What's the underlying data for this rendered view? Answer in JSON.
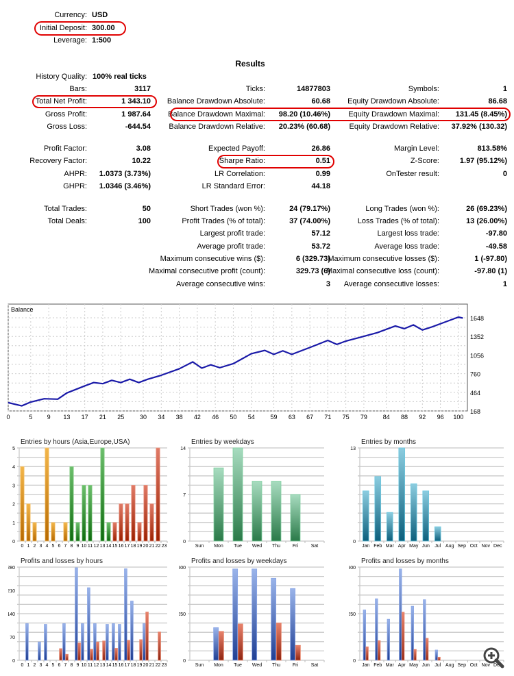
{
  "header": [
    {
      "label": "Currency:",
      "value": "USD"
    },
    {
      "label": "Initial Deposit:",
      "value": "300.00"
    },
    {
      "label": "Leverage:",
      "value": "1:500"
    }
  ],
  "results_title": "Results",
  "sections": [
    {
      "col1": [
        {
          "label": "History Quality:",
          "value": "100% real ticks"
        },
        {
          "label": "Bars:",
          "value": "3117"
        },
        {
          "label": "Total Net Profit:",
          "value": "1 343.10"
        },
        {
          "label": "Gross Profit:",
          "value": "1 987.64"
        },
        {
          "label": "Gross Loss:",
          "value": "-644.54"
        }
      ],
      "col2": [
        null,
        {
          "label": "Ticks:",
          "value": "14877803"
        },
        {
          "label": "Balance Drawdown Absolute:",
          "value": "60.68"
        },
        {
          "label": "Balance Drawdown Maximal:",
          "value": "98.20 (10.46%)"
        },
        {
          "label": "Balance Drawdown Relative:",
          "value": "20.23% (60.68)"
        }
      ],
      "col3": [
        null,
        {
          "label": "Symbols:",
          "value": "1"
        },
        {
          "label": "Equity Drawdown Absolute:",
          "value": "86.68"
        },
        {
          "label": "Equity Drawdown Maximal:",
          "value": "131.45 (8.45%)"
        },
        {
          "label": "Equity Drawdown Relative:",
          "value": "37.92% (130.32)"
        }
      ]
    },
    {
      "col1": [
        {
          "label": "Profit Factor:",
          "value": "3.08"
        },
        {
          "label": "Recovery Factor:",
          "value": "10.22"
        },
        {
          "label": "AHPR:",
          "value": "1.0373 (3.73%)"
        },
        {
          "label": "GHPR:",
          "value": "1.0346 (3.46%)"
        }
      ],
      "col2": [
        {
          "label": "Expected Payoff:",
          "value": "26.86"
        },
        {
          "label": "Sharpe Ratio:",
          "value": "0.51"
        },
        {
          "label": "LR Correlation:",
          "value": "0.99"
        },
        {
          "label": "LR Standard Error:",
          "value": "44.18"
        }
      ],
      "col3": [
        {
          "label": "Margin Level:",
          "value": "813.58%"
        },
        {
          "label": "Z-Score:",
          "value": "1.97 (95.12%)"
        },
        {
          "label": "OnTester result:",
          "value": "0"
        }
      ]
    },
    {
      "col1": [
        {
          "label": "Total Trades:",
          "value": "50"
        },
        {
          "label": "Total Deals:",
          "value": "100"
        }
      ],
      "col2": [
        {
          "label": "Short Trades (won %):",
          "value": "24 (79.17%)"
        },
        {
          "label": "Profit Trades (% of total):",
          "value": "37 (74.00%)"
        },
        {
          "label": "Largest profit trade:",
          "value": "57.12"
        },
        {
          "label": "Average profit trade:",
          "value": "53.72"
        },
        {
          "label": "Maximum consecutive wins ($):",
          "value": "6 (329.73)"
        },
        {
          "label": "Maximal consecutive profit (count):",
          "value": "329.73 (6)"
        },
        {
          "label": "Average consecutive wins:",
          "value": "3"
        }
      ],
      "col3": [
        {
          "label": "Long Trades (won %):",
          "value": "26 (69.23%)"
        },
        {
          "label": "Loss Trades (% of total):",
          "value": "13 (26.00%)"
        },
        {
          "label": "Largest loss trade:",
          "value": "-97.80"
        },
        {
          "label": "Average loss trade:",
          "value": "-49.58"
        },
        {
          "label": "Maximum consecutive losses ($):",
          "value": "1 (-97.80)"
        },
        {
          "label": "Maximal consecutive loss (count):",
          "value": "-97.80 (1)"
        },
        {
          "label": "Average consecutive losses:",
          "value": "1"
        }
      ]
    }
  ],
  "colors": {
    "highlight": "#e00000",
    "balance_line": "#1a1aa8",
    "profit": "#3a5fb8",
    "loss": "#b83a22"
  },
  "chart_data": [
    {
      "type": "line",
      "title": "Balance",
      "x": [
        0,
        3,
        5,
        8,
        11,
        13,
        17,
        19,
        21,
        23,
        25,
        27,
        29,
        31,
        34,
        38,
        41,
        43,
        45,
        47,
        50,
        54,
        57,
        59,
        61,
        63,
        67,
        71,
        73,
        75,
        78,
        82,
        86,
        88,
        90,
        92,
        94,
        96,
        98,
        100,
        101
      ],
      "y": [
        300,
        249,
        309,
        362,
        355,
        453,
        566,
        619,
        601,
        654,
        619,
        672,
        619,
        672,
        735,
        838,
        947,
        848,
        901,
        855,
        919,
        1077,
        1130,
        1067,
        1123,
        1067,
        1176,
        1289,
        1225,
        1278,
        1334,
        1412,
        1518,
        1475,
        1535,
        1454,
        1500,
        1553,
        1606,
        1659,
        1643
      ],
      "xticks": [
        0,
        5,
        9,
        13,
        17,
        21,
        25,
        30,
        34,
        38,
        42,
        46,
        50,
        54,
        59,
        63,
        67,
        71,
        75,
        79,
        84,
        88,
        92,
        96,
        100
      ],
      "yticks": [
        168,
        464,
        760,
        1056,
        1352,
        1648
      ],
      "xlim": [
        0,
        102
      ],
      "ylim": [
        168,
        1700
      ],
      "grid": true
    },
    {
      "type": "bar",
      "title": "Entries by hours (Asia,Europe,USA)",
      "categories": [
        "0",
        "1",
        "2",
        "3",
        "4",
        "5",
        "6",
        "7",
        "8",
        "9",
        "10",
        "11",
        "12",
        "13",
        "14",
        "15",
        "16",
        "17",
        "18",
        "19",
        "20",
        "21",
        "22",
        "23"
      ],
      "values": [
        4,
        2,
        1,
        0,
        5,
        1,
        0,
        1,
        4,
        1,
        3,
        3,
        0,
        5,
        1,
        1,
        2,
        2,
        3,
        1,
        3,
        2,
        5,
        0
      ],
      "yticks": [
        0,
        1,
        2,
        3,
        4,
        5
      ],
      "ylim": [
        0,
        5
      ]
    },
    {
      "type": "bar",
      "title": "Entries by weekdays",
      "categories": [
        "Sun",
        "Mon",
        "Tue",
        "Wed",
        "Thu",
        "Fri",
        "Sat"
      ],
      "values": [
        0,
        11,
        14,
        9,
        9,
        7,
        0
      ],
      "yticks": [
        0,
        7,
        14
      ],
      "ylim": [
        0,
        14
      ]
    },
    {
      "type": "bar",
      "title": "Entries by months",
      "categories": [
        "Jan",
        "Feb",
        "Mar",
        "Apr",
        "May",
        "Jun",
        "Jul",
        "Aug",
        "Sep",
        "Oct",
        "Nov",
        "Dec"
      ],
      "values": [
        7,
        9,
        4,
        13,
        8,
        7,
        2,
        0,
        0,
        0,
        0,
        0
      ],
      "yticks": [
        0,
        13
      ],
      "ylim": [
        0,
        13
      ]
    },
    {
      "type": "bar",
      "title": "Profits and losses by hours",
      "categories": [
        "0",
        "1",
        "2",
        "3",
        "4",
        "5",
        "6",
        "7",
        "8",
        "9",
        "10",
        "11",
        "12",
        "13",
        "14",
        "15",
        "16",
        "17",
        "18",
        "19",
        "20",
        "21",
        "22",
        "23"
      ],
      "series": [
        {
          "name": "Profits",
          "values": [
            0,
            110,
            0,
            55,
            108,
            0,
            0,
            110,
            0,
            278,
            110,
            218,
            110,
            0,
            108,
            110,
            108,
            275,
            178,
            0,
            110,
            0,
            0,
            0
          ]
        },
        {
          "name": "Losses",
          "values": [
            0,
            0,
            0,
            0,
            0,
            0,
            35,
            18,
            0,
            52,
            0,
            33,
            55,
            58,
            0,
            36,
            0,
            60,
            0,
            62,
            145,
            0,
            85,
            0
          ]
        }
      ],
      "yticks": [
        0,
        70,
        140,
        210,
        280
      ],
      "ylim": [
        0,
        280
      ]
    },
    {
      "type": "bar",
      "title": "Profits and losses by weekdays",
      "categories": [
        "Sun",
        "Mon",
        "Tue",
        "Wed",
        "Thu",
        "Fri",
        "Sat"
      ],
      "series": [
        {
          "name": "Profits",
          "values": [
            0,
            175,
            490,
            490,
            440,
            385,
            0
          ]
        },
        {
          "name": "Losses",
          "values": [
            0,
            155,
            195,
            0,
            200,
            80,
            0
          ]
        }
      ],
      "yticks": [
        0,
        250,
        500
      ],
      "ylim": [
        0,
        500
      ]
    },
    {
      "type": "bar",
      "title": "Profits and losses by months",
      "categories": [
        "Jan",
        "Feb",
        "Mar",
        "Apr",
        "May",
        "Jun",
        "Jul",
        "Aug",
        "Sep",
        "Oct",
        "Nov",
        "Dec"
      ],
      "series": [
        {
          "name": "Profits",
          "values": [
            270,
            330,
            220,
            490,
            290,
            325,
            55,
            0,
            0,
            0,
            0,
            0
          ]
        },
        {
          "name": "Losses",
          "values": [
            72,
            105,
            0,
            258,
            58,
            118,
            17,
            0,
            0,
            0,
            0,
            0
          ]
        }
      ],
      "yticks": [
        0,
        250,
        500
      ],
      "ylim": [
        0,
        500
      ]
    }
  ]
}
